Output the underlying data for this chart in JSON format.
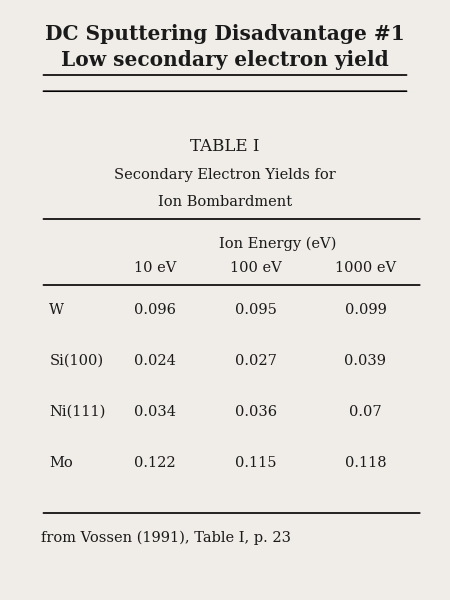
{
  "title_line1": "DC Sputtering Disadvantage #1",
  "title_line2": "Low secondary electron yield",
  "table_title": "TABLE I",
  "table_subtitle1": "Secondary Electron Yields for",
  "table_subtitle2": "Ion Bombardment",
  "col_header_main": "Ion Energy (eV)",
  "col_headers": [
    "10 eV",
    "100 eV",
    "1000 eV"
  ],
  "row_labels": [
    "W",
    "Si(100)",
    "Ni(111)",
    "Mo"
  ],
  "data": [
    [
      0.096,
      0.095,
      0.099
    ],
    [
      0.024,
      0.027,
      0.039
    ],
    [
      0.034,
      0.036,
      0.07
    ],
    [
      0.122,
      0.115,
      0.118
    ]
  ],
  "footnote": "from Vossen (1991), Table I, p. 23",
  "bg_color": "#f5f5f0",
  "text_color": "#1a1a1a"
}
